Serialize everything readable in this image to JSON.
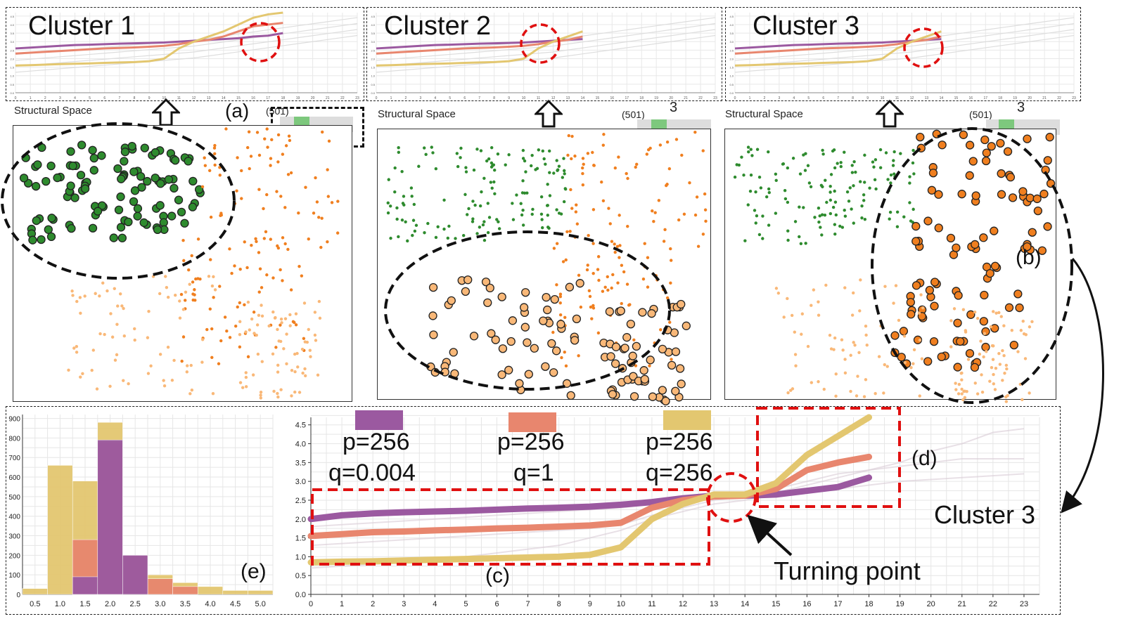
{
  "panels": [
    {
      "title": "Cluster 1",
      "space_label": "Structural Space",
      "count": "(501)",
      "tag": "(a)",
      "highlight": "green"
    },
    {
      "title": "Cluster 2",
      "space_label": "Structural Space",
      "count": "(501)",
      "tag": "3",
      "highlight": "light-orange"
    },
    {
      "title": "Cluster 3",
      "space_label": "Structural Space",
      "count": "(501)",
      "tag": "3",
      "highlight": "orange"
    }
  ],
  "labels": {
    "b": "(b)",
    "c": "(c)",
    "d": "(d)",
    "e": "(e)",
    "cluster3": "Cluster 3",
    "turning_point": "Turning point"
  },
  "legend": [
    {
      "p": "p=256",
      "q": "q=0.004",
      "color": "#9b59a0"
    },
    {
      "p": "p=256",
      "q": "q=1",
      "color": "#e8866e"
    },
    {
      "p": "p=256",
      "q": "q=256",
      "color": "#e3c770"
    }
  ],
  "colors": {
    "purple": "#9b59a0",
    "salmon": "#e8866e",
    "yellow": "#e3c770",
    "green": "#2e8b2e",
    "orange": "#f07f1f",
    "light_orange": "#f9b878",
    "red_dash": "#e01010"
  },
  "chart_data": [
    {
      "type": "line",
      "x": [
        0,
        1,
        2,
        3,
        4,
        5,
        6,
        7,
        8,
        9,
        10,
        11,
        12,
        13,
        14,
        15,
        16,
        17,
        18
      ],
      "xticks": [
        "0",
        "1",
        "2",
        "3",
        "4",
        "5",
        "6",
        "7",
        "8",
        "9",
        "10",
        "11",
        "12",
        "13",
        "14",
        "15",
        "16",
        "17",
        "18",
        "19",
        "20",
        "21",
        "22",
        "23"
      ],
      "yticks": [
        "0.0",
        "0.5",
        "1.0",
        "1.5",
        "2.0",
        "2.5",
        "3.0",
        "3.5",
        "4.0",
        "4.5"
      ],
      "ylim": [
        0,
        4.7
      ],
      "xlim": [
        0,
        23.5
      ],
      "series": [
        {
          "name": "p=256 q=0.004",
          "color": "#9b59a0",
          "values": [
            2.0,
            2.1,
            2.15,
            2.18,
            2.2,
            2.22,
            2.25,
            2.28,
            2.3,
            2.33,
            2.38,
            2.45,
            2.55,
            2.62,
            2.62,
            2.65,
            2.75,
            2.85,
            3.1
          ]
        },
        {
          "name": "p=256 q=1",
          "color": "#e8866e",
          "values": [
            1.55,
            1.6,
            1.65,
            1.67,
            1.7,
            1.72,
            1.75,
            1.77,
            1.8,
            1.83,
            1.9,
            2.3,
            2.5,
            2.6,
            2.62,
            2.8,
            3.3,
            3.5,
            3.65
          ]
        },
        {
          "name": "p=256 q=256",
          "color": "#e3c770",
          "values": [
            0.85,
            0.87,
            0.88,
            0.9,
            0.92,
            0.94,
            0.96,
            0.98,
            1.0,
            1.05,
            1.25,
            2.0,
            2.4,
            2.65,
            2.65,
            2.95,
            3.7,
            4.2,
            4.7
          ]
        }
      ]
    },
    {
      "type": "bar",
      "categories": [
        "0.5",
        "1.0",
        "1.5",
        "2.0",
        "2.5",
        "3.0",
        "3.5",
        "4.0",
        "4.5",
        "5.0"
      ],
      "xticks": [
        "0.5",
        "1.0",
        "1.5",
        "2.0",
        "2.5",
        "3.0",
        "3.5",
        "4.0",
        "4.5",
        "5.0"
      ],
      "yticks": [
        "0",
        "100",
        "200",
        "300",
        "400",
        "500",
        "600",
        "700",
        "800",
        "900"
      ],
      "ylim": [
        0,
        920
      ],
      "series": [
        {
          "name": "p=256 q=0.004",
          "color": "#9b59a0",
          "values": [
            0,
            0,
            90,
            790,
            200,
            0,
            0,
            0,
            0,
            0
          ]
        },
        {
          "name": "p=256 q=1",
          "color": "#e8866e",
          "values": [
            0,
            0,
            280,
            780,
            200,
            80,
            40,
            0,
            0,
            0
          ]
        },
        {
          "name": "p=256 q=256",
          "color": "#e3c770",
          "values": [
            30,
            660,
            580,
            880,
            0,
            100,
            60,
            40,
            20,
            20
          ]
        }
      ]
    }
  ]
}
